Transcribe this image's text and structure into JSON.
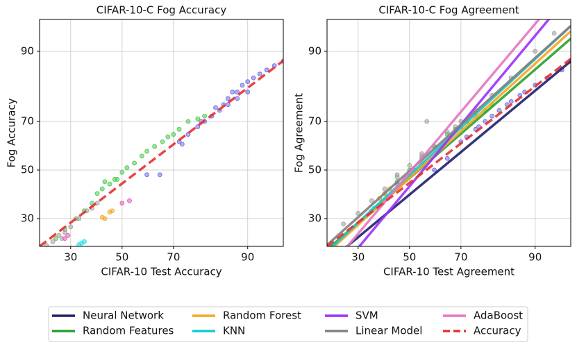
{
  "chart_data": [
    {
      "type": "scatter",
      "title": "CIFAR-10-C Fog Accuracy",
      "xlabel": "CIFAR-10 Test Accuracy",
      "ylabel": "Fog Accuracy",
      "scale": "probit",
      "grid": true,
      "xlim": [
        20,
        95
      ],
      "ylim": [
        20.5,
        94.8
      ],
      "xticks": [
        30,
        50,
        70,
        90
      ],
      "yticks": [
        30,
        50,
        70,
        90
      ],
      "points": [
        {
          "color": "#6b6be6",
          "x": [
            72,
            75,
            78,
            80,
            82,
            84,
            85,
            86,
            87,
            88,
            89,
            90,
            91,
            92,
            93,
            94,
            95,
            73,
            79,
            83,
            60,
            65,
            88,
            90,
            86
          ],
          "y": [
            62,
            65,
            68,
            70,
            72,
            74,
            76,
            78,
            80,
            80,
            82,
            83,
            84,
            85,
            86,
            87,
            88,
            61,
            70,
            75,
            48,
            48,
            78,
            80,
            76
          ]
        },
        {
          "color": "#4cc94c",
          "x": [
            25,
            28,
            32,
            35,
            38,
            40,
            42,
            45,
            48,
            50,
            52,
            55,
            58,
            60,
            63,
            66,
            68,
            70,
            72,
            75,
            78,
            80,
            43,
            47
          ],
          "y": [
            23,
            26,
            30,
            33,
            36,
            40,
            42,
            44,
            46,
            49,
            51,
            53,
            56,
            58,
            60,
            62,
            64,
            65,
            67,
            70,
            71,
            72,
            45,
            46
          ]
        },
        {
          "color": "#a0a0a0",
          "x": [
            22,
            24,
            26,
            28,
            30,
            33,
            36,
            38,
            40,
            27
          ],
          "y": [
            20.8,
            22,
            24,
            25,
            27,
            30,
            33,
            34,
            36,
            23
          ]
        },
        {
          "color": "#f5a623",
          "x": [
            42,
            45,
            43,
            46
          ],
          "y": [
            30.5,
            32.5,
            30,
            33
          ]
        },
        {
          "color": "#e05ab8",
          "x": [
            50,
            53,
            28,
            29
          ],
          "y": [
            36,
            37,
            23,
            24
          ]
        },
        {
          "color": "#17dfe8",
          "x": [
            33,
            34,
            35
          ],
          "y": [
            21,
            21.5,
            22
          ]
        }
      ],
      "lines": [
        {
          "name": "Accuracy",
          "color": "#e83030",
          "dash": true,
          "x": [
            20,
            95
          ],
          "y": [
            20.5,
            88.1
          ]
        }
      ]
    },
    {
      "type": "scatter",
      "title": "CIFAR-10-C Fog Agreement",
      "xlabel": "CIFAR-10 Test Agreement",
      "ylabel": "Fog Agreement",
      "scale": "probit",
      "grid": true,
      "xlim": [
        20,
        95
      ],
      "ylim": [
        20.5,
        94.8
      ],
      "xticks": [
        30,
        50,
        70,
        90
      ],
      "yticks": [
        30,
        50,
        70,
        90
      ],
      "legend": "bottom",
      "points": [
        {
          "color": "#a0a0a0",
          "x": [
            25,
            30,
            35,
            40,
            45,
            50,
            55,
            57,
            60,
            65,
            70,
            75,
            80,
            85,
            90,
            93,
            45,
            55,
            68
          ],
          "y": [
            28,
            32,
            37,
            42,
            47,
            52,
            57,
            70,
            60,
            66,
            70,
            74,
            79,
            84,
            90,
            93,
            48,
            56,
            68
          ]
        },
        {
          "color": "#4cc94c",
          "x": [
            40,
            45,
            50,
            55,
            60,
            65,
            68,
            70,
            72,
            75,
            78,
            80
          ],
          "y": [
            40,
            45,
            50,
            55,
            60,
            65,
            67,
            68,
            70,
            72,
            74,
            76
          ]
        },
        {
          "color": "#6b6be6",
          "x": [
            60,
            65,
            70,
            72,
            75,
            78,
            80,
            82,
            85,
            87,
            88,
            90,
            92,
            94,
            95,
            76,
            84
          ],
          "y": [
            50,
            55,
            62,
            64,
            67,
            70,
            72,
            74,
            77,
            79,
            80,
            82,
            84,
            86,
            88,
            68,
            76
          ]
        },
        {
          "color": "#f5a623",
          "x": [
            38,
            40,
            42,
            55
          ],
          "y": [
            38,
            40,
            42,
            53
          ]
        },
        {
          "color": "#e05ab8",
          "x": [
            45,
            50,
            52
          ],
          "y": [
            44,
            48,
            50
          ]
        },
        {
          "color": "#17dfe8",
          "x": [
            35,
            36
          ],
          "y": [
            33,
            34
          ]
        }
      ],
      "lines": [
        {
          "name": "Neural Network",
          "color": "#1f1f6b",
          "dash": false,
          "x": [
            20,
            95
          ],
          "y": [
            15.8,
            88.0
          ]
        },
        {
          "name": "Random Features",
          "color": "#2ca02c",
          "dash": false,
          "x": [
            20,
            95
          ],
          "y": [
            19.5,
            92.2
          ]
        },
        {
          "name": "Random Forest",
          "color": "#f5a623",
          "dash": false,
          "x": [
            20,
            95
          ],
          "y": [
            18.5,
            93.3
          ]
        },
        {
          "name": "KNN",
          "color": "#17c9c9",
          "dash": false,
          "x": [
            20,
            95
          ],
          "y": [
            19,
            94.0
          ]
        },
        {
          "name": "SVM",
          "color": "#9b30ff",
          "dash": false,
          "x": [
            20,
            95
          ],
          "y": [
            10.7,
            97.2
          ]
        },
        {
          "name": "Linear Model",
          "color": "#808080",
          "dash": false,
          "x": [
            20,
            95
          ],
          "y": [
            20.9,
            94.0
          ]
        },
        {
          "name": "AdaBoost",
          "color": "#e377c2",
          "dash": false,
          "x": [
            20,
            95
          ],
          "y": [
            13.9,
            97.9
          ]
        },
        {
          "name": "Accuracy",
          "color": "#e83030",
          "dash": true,
          "x": [
            20,
            95
          ],
          "y": [
            20.5,
            88.5
          ]
        }
      ]
    }
  ]
}
